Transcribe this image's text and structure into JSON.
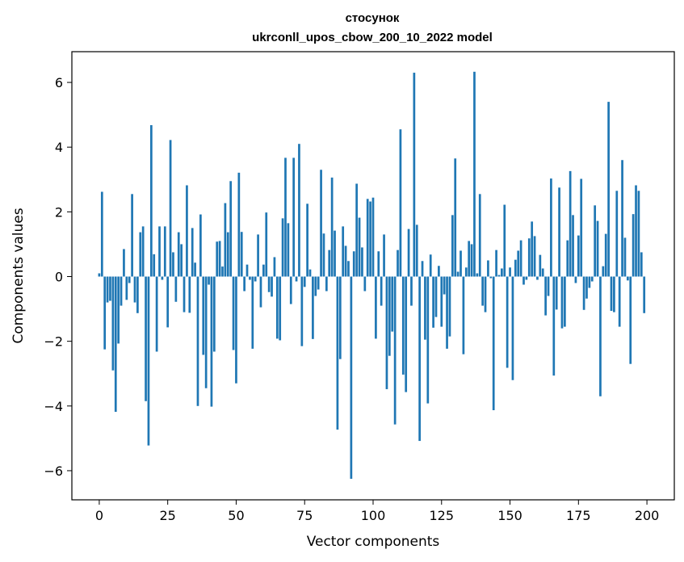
{
  "chart_data": {
    "type": "bar",
    "title_lines": [
      "стосунок",
      "ukrconll_upos_cbow_200_10_2022 model"
    ],
    "xlabel": "Vector components",
    "ylabel": "Components values",
    "xlim": [
      -10,
      210
    ],
    "ylim": [
      -6.9,
      6.95
    ],
    "xticks": [
      0,
      25,
      50,
      75,
      100,
      125,
      150,
      175,
      200
    ],
    "xtick_labels": [
      "0",
      "25",
      "50",
      "75",
      "100",
      "125",
      "150",
      "175",
      "200"
    ],
    "yticks": [
      -6,
      -4,
      -2,
      0,
      2,
      4,
      6
    ],
    "ytick_labels": [
      "−6",
      "−4",
      "−2",
      "0",
      "2",
      "4",
      "6"
    ],
    "bar_color": "#1f77b4",
    "grid": false,
    "x": [
      0,
      1,
      2,
      3,
      4,
      5,
      6,
      7,
      8,
      9,
      10,
      11,
      12,
      13,
      14,
      15,
      16,
      17,
      18,
      19,
      20,
      21,
      22,
      23,
      24,
      25,
      26,
      27,
      28,
      29,
      30,
      31,
      32,
      33,
      34,
      35,
      36,
      37,
      38,
      39,
      40,
      41,
      42,
      43,
      44,
      45,
      46,
      47,
      48,
      49,
      50,
      51,
      52,
      53,
      54,
      55,
      56,
      57,
      58,
      59,
      60,
      61,
      62,
      63,
      64,
      65,
      66,
      67,
      68,
      69,
      70,
      71,
      72,
      73,
      74,
      75,
      76,
      77,
      78,
      79,
      80,
      81,
      82,
      83,
      84,
      85,
      86,
      87,
      88,
      89,
      90,
      91,
      92,
      93,
      94,
      95,
      96,
      97,
      98,
      99,
      100,
      101,
      102,
      103,
      104,
      105,
      106,
      107,
      108,
      109,
      110,
      111,
      112,
      113,
      114,
      115,
      116,
      117,
      118,
      119,
      120,
      121,
      122,
      123,
      124,
      125,
      126,
      127,
      128,
      129,
      130,
      131,
      132,
      133,
      134,
      135,
      136,
      137,
      138,
      139,
      140,
      141,
      142,
      143,
      144,
      145,
      146,
      147,
      148,
      149,
      150,
      151,
      152,
      153,
      154,
      155,
      156,
      157,
      158,
      159,
      160,
      161,
      162,
      163,
      164,
      165,
      166,
      167,
      168,
      169,
      170,
      171,
      172,
      173,
      174,
      175,
      176,
      177,
      178,
      179,
      180,
      181,
      182,
      183,
      184,
      185,
      186,
      187,
      188,
      189,
      190,
      191,
      192,
      193,
      194,
      195,
      196,
      197,
      198,
      199
    ],
    "values": [
      0.1,
      2.62,
      -2.25,
      -0.8,
      -0.75,
      -2.9,
      -4.18,
      -2.07,
      -0.9,
      0.85,
      -0.72,
      -0.2,
      2.55,
      -0.8,
      -1.13,
      1.37,
      1.55,
      -3.85,
      -5.22,
      4.68,
      0.69,
      -2.32,
      1.55,
      -0.1,
      1.55,
      -1.57,
      4.22,
      0.75,
      -0.78,
      1.37,
      1.0,
      -1.1,
      2.82,
      -1.12,
      1.5,
      0.43,
      -4.0,
      1.92,
      -2.42,
      -3.45,
      -0.25,
      -4.02,
      -2.32,
      1.08,
      1.1,
      0.31,
      2.27,
      1.37,
      2.95,
      -2.27,
      -3.3,
      3.21,
      1.38,
      -0.45,
      0.37,
      -0.1,
      -2.23,
      -0.15,
      1.3,
      -0.95,
      0.37,
      1.98,
      -0.48,
      -0.62,
      0.6,
      -1.92,
      -1.97,
      1.8,
      3.67,
      1.65,
      -0.85,
      3.67,
      -0.15,
      4.1,
      -2.15,
      -0.32,
      2.25,
      0.22,
      -1.93,
      -0.6,
      -0.4,
      3.3,
      1.33,
      -0.45,
      0.82,
      3.06,
      1.42,
      -4.73,
      -2.55,
      1.55,
      0.95,
      0.48,
      -6.25,
      0.78,
      2.87,
      1.82,
      0.9,
      -0.45,
      2.4,
      2.32,
      2.44,
      -1.92,
      0.78,
      -0.9,
      1.3,
      -3.48,
      -2.45,
      -1.7,
      -4.57,
      0.82,
      4.55,
      -3.03,
      -3.57,
      1.47,
      -0.9,
      6.3,
      1.6,
      -5.08,
      0.48,
      -1.95,
      -3.92,
      0.68,
      -1.58,
      -1.25,
      0.33,
      -1.55,
      -0.55,
      -2.23,
      -1.85,
      1.9,
      3.65,
      0.15,
      0.8,
      -2.4,
      0.28,
      1.1,
      1.0,
      6.33,
      0.1,
      2.55,
      -0.9,
      -1.1,
      0.5,
      -0.05,
      -4.13,
      0.82,
      0.05,
      0.25,
      2.22,
      -2.82,
      0.28,
      -3.2,
      0.52,
      0.8,
      1.12,
      -0.25,
      -0.1,
      1.18,
      1.7,
      1.25,
      -0.1,
      0.67,
      0.25,
      -1.2,
      -0.6,
      3.03,
      -3.06,
      -1.02,
      2.75,
      -1.6,
      -1.55,
      1.12,
      3.26,
      1.9,
      -0.2,
      1.27,
      3.02,
      -1.03,
      -0.68,
      -0.35,
      -0.15,
      2.2,
      1.72,
      -3.7,
      0.32,
      1.32,
      5.4,
      -1.06,
      -1.1,
      2.65,
      -1.55,
      3.6,
      1.2,
      -0.12,
      -2.7,
      1.93,
      2.82,
      2.65,
      0.75,
      -1.13
    ]
  }
}
